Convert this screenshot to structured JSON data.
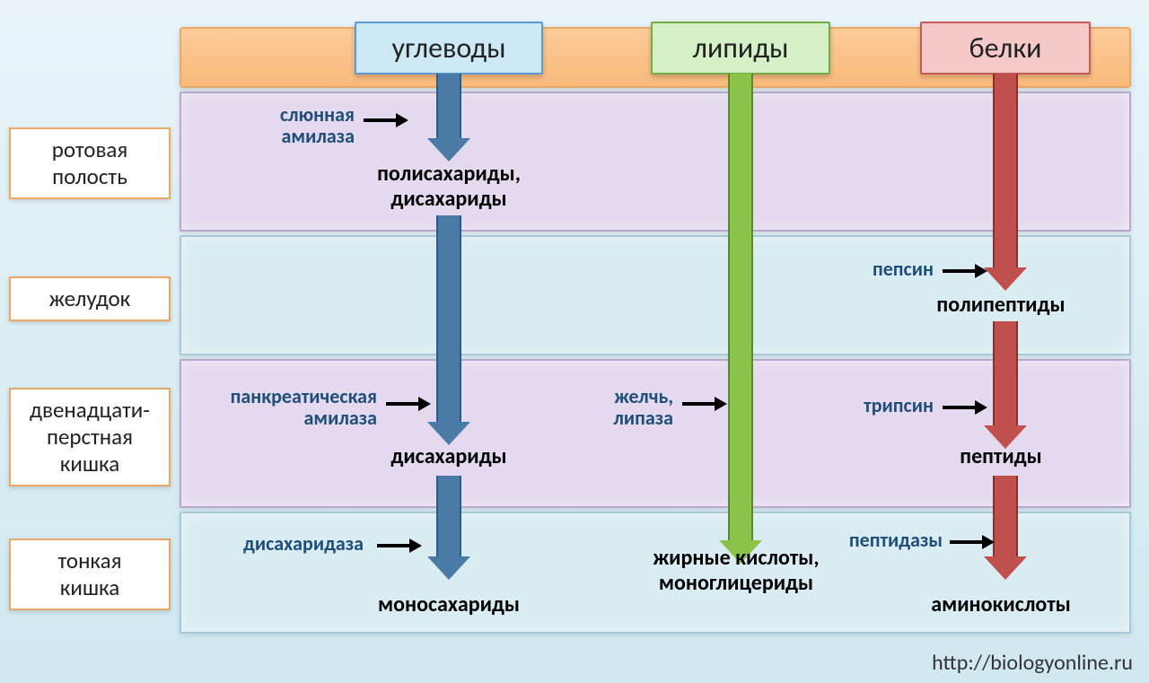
{
  "columns": {
    "carbs": {
      "label": "углеводы",
      "bg": "#cce8f4",
      "border": "#5b9bd5"
    },
    "lipids": {
      "label": "липиды",
      "bg": "#d5f0c6",
      "border": "#70ad47"
    },
    "proteins": {
      "label": "белки",
      "bg": "#f6c9c9",
      "border": "#c55a5a"
    }
  },
  "rows": {
    "mouth": {
      "label": "ротовая полость",
      "bg": "#e4d9ee",
      "border": "#b8a8d0"
    },
    "stomach": {
      "label": "желудок",
      "bg": "#d9ecf2",
      "border": "#a8c8d8"
    },
    "duodenum": {
      "label": "двенадцати-перстная кишка",
      "bg": "#e4d9ee",
      "border": "#b8a8d0"
    },
    "ileum": {
      "label": "тонкая кишка",
      "bg": "#d9ecf2",
      "border": "#a8c8d8"
    }
  },
  "arrows": {
    "carbs": {
      "fill": "#4a7ba6",
      "border": "#2e5c8a"
    },
    "lipids": {
      "fill": "#8bc34a",
      "border": "#5a8a2e"
    },
    "proteins": {
      "fill": "#c0504d",
      "border": "#8a2e2e"
    }
  },
  "enzymes": {
    "saliva": "слюнная амилаза",
    "pepsin": "пепсин",
    "panc_amylase": "панкреатическая амилаза",
    "bile": "желчь, липаза",
    "trypsin": "трипсин",
    "disacch": "дисахаридаза",
    "peptidase": "пептидазы"
  },
  "products": {
    "poly_di": "полисахариды, дисахариды",
    "polypep": "полипептиды",
    "disacch": "дисахариды",
    "peptides": "пептиды",
    "mono": "моносахариды",
    "fatty": "жирные кислоты, моноглицериды",
    "amino": "аминокислоты"
  },
  "url": "http://biologyonline.ru",
  "layout": {
    "col_x": {
      "carbs": 300,
      "lipids": 625,
      "proteins": 920
    },
    "header_w": {
      "carbs": 210,
      "lipids": 200,
      "proteins": 190
    },
    "row_top": {
      "mouth": 72,
      "stomach": 232,
      "duodenum": 370,
      "ileum": 540
    },
    "row_h": {
      "mouth": 156,
      "stomach": 134,
      "duodenum": 166,
      "ileum": 136
    }
  }
}
